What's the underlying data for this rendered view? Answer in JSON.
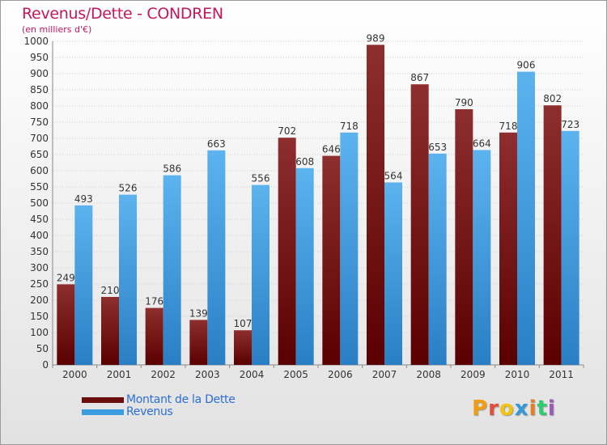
{
  "chart_data": {
    "type": "bar",
    "title": "Revenus/Dette - CONDREN",
    "subtitle": "(en milliers d'€)",
    "categories": [
      "2000",
      "2001",
      "2002",
      "2003",
      "2004",
      "2005",
      "2006",
      "2007",
      "2008",
      "2009",
      "2010",
      "2011"
    ],
    "series": [
      {
        "name": "Montant de la Dette",
        "color": "#7a1a1a",
        "values": [
          249,
          210,
          176,
          139,
          107,
          702,
          646,
          989,
          867,
          790,
          718,
          802
        ]
      },
      {
        "name": "Revenus",
        "color": "#3a9de0",
        "values": [
          493,
          526,
          586,
          663,
          556,
          608,
          718,
          564,
          653,
          664,
          906,
          723
        ]
      }
    ],
    "ylim": [
      0,
      1000
    ],
    "ytick_step": 50,
    "grid": true,
    "legend": "bottom-left"
  },
  "logo": {
    "text": "Proxiti",
    "colors": [
      "#f39c12",
      "#e74c3c",
      "#f1c40f",
      "#3498db",
      "#e67e22",
      "#2ecc71",
      "#9b59b6"
    ]
  }
}
